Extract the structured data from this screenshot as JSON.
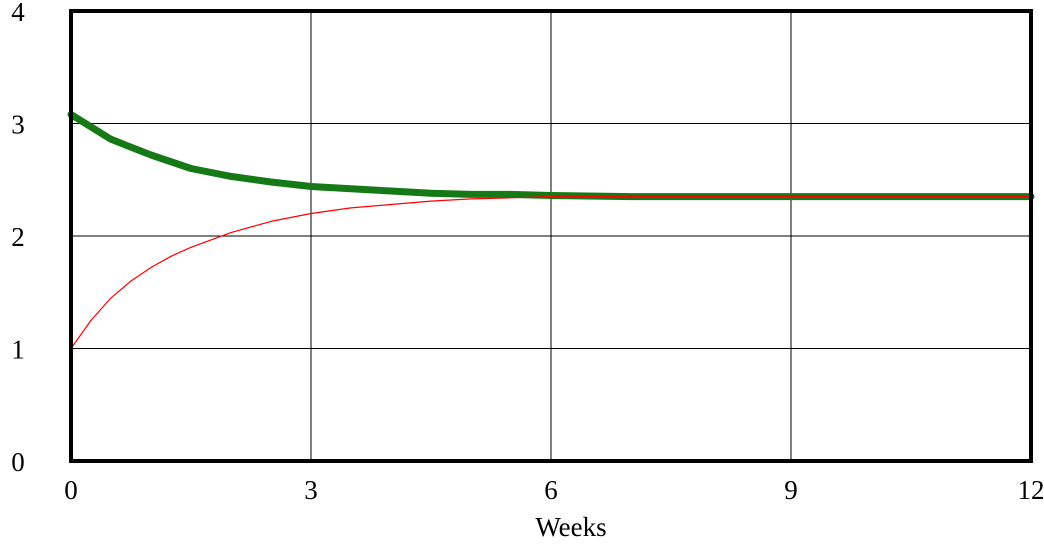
{
  "chart_data": {
    "type": "line",
    "title": "",
    "xlabel": "Weeks",
    "ylabel": "",
    "xlim": [
      0,
      12
    ],
    "ylim": [
      0,
      4
    ],
    "xticks": [
      "0",
      "3",
      "6",
      "9",
      "12"
    ],
    "yticks": [
      "0",
      "1",
      "2",
      "3",
      "4"
    ],
    "grid": true,
    "legend": "none",
    "series": [
      {
        "color": "#157a15",
        "line_style": "thick",
        "x": [
          0,
          0.5,
          1,
          1.5,
          2,
          2.5,
          3,
          3.5,
          4,
          4.5,
          5,
          5.5,
          6,
          7,
          8,
          9,
          10,
          11,
          12
        ],
        "y": [
          3.08,
          2.86,
          2.72,
          2.6,
          2.53,
          2.48,
          2.44,
          2.42,
          2.4,
          2.38,
          2.37,
          2.37,
          2.36,
          2.35,
          2.35,
          2.35,
          2.35,
          2.35,
          2.35
        ]
      },
      {
        "color": "#ff0000",
        "line_style": "thin",
        "x": [
          0,
          0.25,
          0.5,
          0.75,
          1,
          1.25,
          1.5,
          2,
          2.5,
          3,
          3.5,
          4,
          4.5,
          5,
          5.5,
          6,
          7,
          8,
          9,
          10,
          11,
          12
        ],
        "y": [
          1.0,
          1.25,
          1.45,
          1.6,
          1.72,
          1.82,
          1.9,
          2.03,
          2.13,
          2.2,
          2.25,
          2.28,
          2.31,
          2.33,
          2.34,
          2.35,
          2.35,
          2.35,
          2.35,
          2.35,
          2.35,
          2.35
        ]
      }
    ]
  }
}
